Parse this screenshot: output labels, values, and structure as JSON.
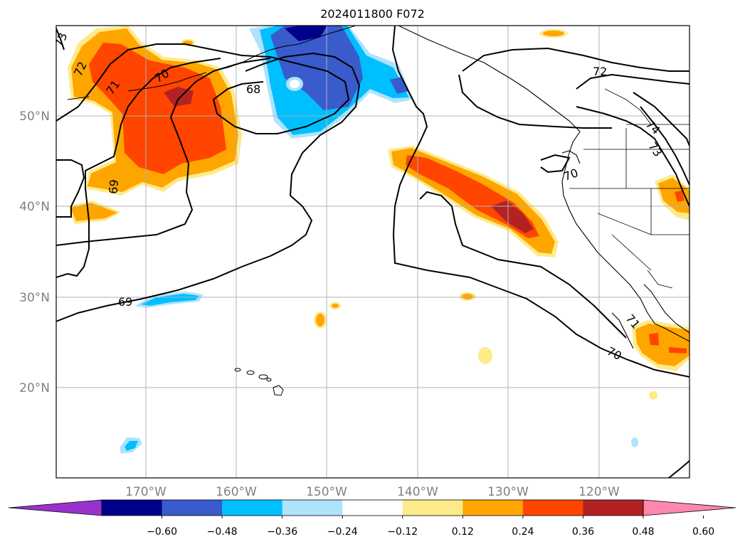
{
  "title": "2024011800 F072",
  "lat_labels": [
    "50°N",
    "40°N",
    "30°N",
    "20°N"
  ],
  "lon_labels": [
    "170°W",
    "160°W",
    "150°W",
    "140°W",
    "130°W",
    "120°W"
  ],
  "contour_labels": [
    "72",
    "71",
    "70",
    "68",
    "69",
    "69",
    "72",
    "74",
    "73",
    "70",
    "71",
    "70",
    "73"
  ],
  "colorbar": {
    "ticks": [
      "−0.60",
      "−0.48",
      "−0.36",
      "−0.24",
      "−0.12",
      "0.12",
      "0.24",
      "0.36",
      "0.48",
      "0.60"
    ],
    "colors": [
      "#9932cc",
      "#00008b",
      "#3a5bcc",
      "#00bfff",
      "#aee3fb",
      "#ffffff",
      "#ffea8a",
      "#ffa500",
      "#ff4500",
      "#b22222",
      "#ff87b0"
    ]
  },
  "shading_colors": {
    "lightyellow": "#ffea8a",
    "orange": "#ffa500",
    "orangered": "#ff4500",
    "darkred": "#b22222",
    "lightblue": "#aee3fb",
    "blue": "#00bfff",
    "royal": "#3a5bcc",
    "navy": "#00008b"
  }
}
